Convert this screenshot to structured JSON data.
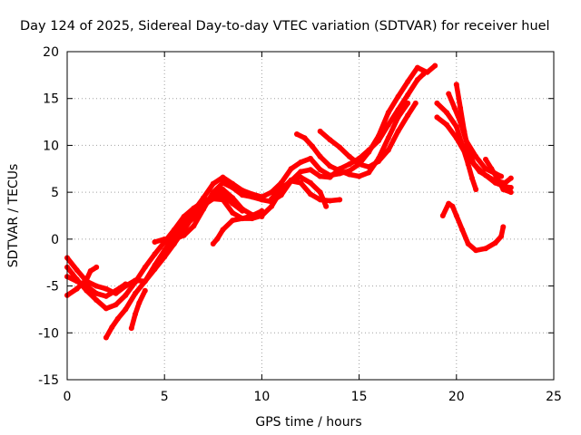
{
  "chart_data": {
    "type": "scatter",
    "title": "Day 124 of 2025, Sidereal Day-to-day VTEC variation (SDTVAR) for receiver huel",
    "xlabel": "GPS time / hours",
    "ylabel": "SDTVAR / TECUs",
    "xlim": [
      0,
      25
    ],
    "ylim": [
      -15,
      20
    ],
    "xticks": [
      0,
      5,
      10,
      15,
      20,
      25
    ],
    "yticks": [
      -15,
      -10,
      -5,
      0,
      5,
      10,
      15,
      20
    ],
    "grid": true,
    "marker_color": "#ff0000",
    "series": [
      {
        "name": "s1",
        "points": [
          [
            0.0,
            -2.0
          ],
          [
            0.5,
            -3.3
          ],
          [
            1.0,
            -4.5
          ],
          [
            1.5,
            -5.0
          ],
          [
            2.0,
            -5.3
          ],
          [
            2.5,
            -5.8
          ],
          [
            3.0,
            -5.0
          ],
          [
            3.5,
            -4.4
          ],
          [
            4.0,
            -4.5
          ],
          [
            4.5,
            -2.8
          ],
          [
            5.0,
            -1.2
          ],
          [
            5.5,
            0.3
          ],
          [
            6.0,
            1.3
          ],
          [
            6.5,
            2.3
          ],
          [
            7.0,
            3.5
          ],
          [
            7.5,
            4.7
          ],
          [
            8.0,
            5.3
          ],
          [
            8.5,
            4.4
          ],
          [
            9.0,
            3.2
          ],
          [
            9.5,
            2.6
          ],
          [
            10.0,
            2.4
          ]
        ]
      },
      {
        "name": "s2",
        "points": [
          [
            0.0,
            -6.0
          ],
          [
            0.5,
            -5.3
          ],
          [
            1.0,
            -4.3
          ],
          [
            1.2,
            -3.4
          ],
          [
            1.5,
            -3.0
          ]
        ]
      },
      {
        "name": "s3",
        "points": [
          [
            0.0,
            -3.0
          ],
          [
            0.5,
            -4.3
          ],
          [
            1.0,
            -5.5
          ],
          [
            1.5,
            -6.5
          ],
          [
            2.0,
            -7.4
          ],
          [
            2.5,
            -7.0
          ],
          [
            3.0,
            -6.0
          ],
          [
            3.5,
            -4.6
          ],
          [
            4.0,
            -3.0
          ],
          [
            4.5,
            -1.6
          ],
          [
            5.0,
            -0.3
          ],
          [
            5.5,
            1.0
          ],
          [
            6.0,
            2.4
          ],
          [
            6.5,
            3.3
          ],
          [
            7.0,
            4.0
          ],
          [
            7.5,
            4.5
          ],
          [
            8.0,
            4.7
          ],
          [
            8.5,
            3.8
          ],
          [
            9.0,
            3.0
          ]
        ]
      },
      {
        "name": "s4",
        "points": [
          [
            0.0,
            -4.0
          ],
          [
            0.5,
            -4.5
          ],
          [
            1.0,
            -5.0
          ],
          [
            1.5,
            -5.8
          ],
          [
            2.0,
            -6.1
          ],
          [
            2.5,
            -5.5
          ],
          [
            3.0,
            -4.8
          ]
        ]
      },
      {
        "name": "s5",
        "points": [
          [
            2.0,
            -10.5
          ],
          [
            2.3,
            -9.4
          ],
          [
            2.6,
            -8.5
          ],
          [
            3.0,
            -7.5
          ],
          [
            3.5,
            -5.8
          ],
          [
            4.0,
            -4.5
          ],
          [
            4.5,
            -3.2
          ],
          [
            5.0,
            -1.9
          ],
          [
            5.5,
            -0.5
          ],
          [
            6.0,
            1.0
          ],
          [
            6.5,
            2.5
          ],
          [
            7.0,
            3.6
          ],
          [
            7.5,
            4.3
          ],
          [
            8.0,
            4.2
          ],
          [
            8.5,
            2.8
          ],
          [
            9.0,
            2.2
          ],
          [
            9.5,
            2.5
          ],
          [
            10.0,
            3.0
          ]
        ]
      },
      {
        "name": "s6",
        "points": [
          [
            3.3,
            -9.5
          ],
          [
            3.5,
            -8.0
          ],
          [
            3.7,
            -6.8
          ],
          [
            4.0,
            -5.5
          ]
        ]
      },
      {
        "name": "s7",
        "points": [
          [
            4.5,
            -0.3
          ],
          [
            5.0,
            0.0
          ],
          [
            5.5,
            0.0
          ],
          [
            6.0,
            0.4
          ],
          [
            6.5,
            1.4
          ],
          [
            7.0,
            3.2
          ],
          [
            7.5,
            5.0
          ],
          [
            8.0,
            6.0
          ],
          [
            8.5,
            5.5
          ],
          [
            9.0,
            4.7
          ],
          [
            9.5,
            4.5
          ],
          [
            10.0,
            4.2
          ],
          [
            10.5,
            4.0
          ],
          [
            11.0,
            4.7
          ],
          [
            11.5,
            6.2
          ],
          [
            12.0,
            7.2
          ],
          [
            12.5,
            7.4
          ],
          [
            13.0,
            6.7
          ],
          [
            13.5,
            6.6
          ],
          [
            14.0,
            7.5
          ],
          [
            14.5,
            8.0
          ],
          [
            15.0,
            8.6
          ],
          [
            15.5,
            9.5
          ],
          [
            16.0,
            10.5
          ],
          [
            16.5,
            12.2
          ],
          [
            17.0,
            13.8
          ],
          [
            17.5,
            15.4
          ],
          [
            18.0,
            17.0
          ],
          [
            18.3,
            17.6
          ]
        ]
      },
      {
        "name": "s8",
        "points": [
          [
            5.0,
            -0.3
          ],
          [
            5.5,
            0.4
          ],
          [
            6.0,
            1.6
          ],
          [
            6.5,
            3.0
          ],
          [
            7.0,
            4.4
          ],
          [
            7.5,
            5.9
          ],
          [
            8.0,
            6.6
          ],
          [
            8.5,
            5.9
          ],
          [
            9.0,
            5.2
          ],
          [
            9.5,
            4.8
          ],
          [
            10.0,
            4.5
          ],
          [
            10.5,
            5.0
          ],
          [
            11.0,
            6.0
          ],
          [
            11.5,
            7.5
          ],
          [
            12.0,
            8.2
          ],
          [
            12.5,
            8.6
          ],
          [
            13.0,
            7.4
          ],
          [
            13.5,
            6.8
          ],
          [
            14.0,
            7.0
          ],
          [
            14.5,
            7.3
          ],
          [
            15.0,
            8.0
          ],
          [
            15.5,
            9.3
          ],
          [
            16.0,
            11.0
          ],
          [
            16.5,
            13.5
          ],
          [
            17.0,
            15.2
          ],
          [
            17.5,
            16.8
          ],
          [
            18.0,
            18.3
          ],
          [
            18.5,
            17.8
          ],
          [
            18.9,
            18.5
          ]
        ]
      },
      {
        "name": "s9",
        "points": [
          [
            7.5,
            -0.5
          ],
          [
            7.7,
            0.0
          ],
          [
            8.0,
            1.0
          ],
          [
            8.5,
            2.0
          ],
          [
            9.0,
            2.2
          ],
          [
            9.5,
            2.2
          ],
          [
            10.0,
            2.5
          ],
          [
            10.5,
            3.5
          ],
          [
            11.0,
            5.2
          ],
          [
            11.5,
            6.3
          ],
          [
            12.0,
            6.6
          ],
          [
            12.5,
            6.0
          ],
          [
            13.0,
            5.0
          ],
          [
            13.3,
            3.5
          ]
        ]
      },
      {
        "name": "s10",
        "points": [
          [
            10.5,
            4.3
          ],
          [
            11.0,
            5.4
          ],
          [
            11.5,
            6.2
          ],
          [
            12.0,
            6.0
          ],
          [
            12.5,
            4.8
          ],
          [
            13.0,
            4.2
          ],
          [
            13.5,
            4.1
          ],
          [
            14.0,
            4.2
          ]
        ]
      },
      {
        "name": "s11",
        "points": [
          [
            11.8,
            11.2
          ],
          [
            12.2,
            10.8
          ],
          [
            12.6,
            9.9
          ],
          [
            13.0,
            8.8
          ],
          [
            13.5,
            7.8
          ],
          [
            14.0,
            7.3
          ],
          [
            14.5,
            6.9
          ],
          [
            15.0,
            6.7
          ],
          [
            15.5,
            7.1
          ],
          [
            16.0,
            8.6
          ],
          [
            16.5,
            10.8
          ],
          [
            17.0,
            13.0
          ],
          [
            17.5,
            14.5
          ]
        ]
      },
      {
        "name": "s12",
        "points": [
          [
            13.0,
            11.5
          ],
          [
            13.5,
            10.6
          ],
          [
            14.0,
            9.8
          ],
          [
            14.5,
            8.8
          ],
          [
            15.0,
            8.0
          ],
          [
            15.5,
            7.7
          ],
          [
            16.0,
            8.3
          ],
          [
            16.5,
            9.5
          ],
          [
            17.0,
            11.5
          ],
          [
            17.5,
            13.2
          ],
          [
            17.9,
            14.5
          ]
        ]
      },
      {
        "name": "s13",
        "points": [
          [
            19.6,
            15.5
          ],
          [
            19.9,
            14.0
          ],
          [
            20.2,
            12.5
          ],
          [
            20.5,
            10.5
          ],
          [
            21.0,
            8.8
          ],
          [
            21.5,
            7.5
          ],
          [
            22.0,
            7.0
          ],
          [
            22.3,
            6.7
          ]
        ]
      },
      {
        "name": "s14",
        "points": [
          [
            19.0,
            14.5
          ],
          [
            19.5,
            13.5
          ],
          [
            20.0,
            12.0
          ],
          [
            20.3,
            10.0
          ],
          [
            20.6,
            8.0
          ],
          [
            20.8,
            6.5
          ],
          [
            21.0,
            5.3
          ]
        ]
      },
      {
        "name": "s15",
        "points": [
          [
            20.0,
            16.5
          ],
          [
            20.2,
            14.0
          ],
          [
            20.4,
            11.5
          ],
          [
            20.6,
            9.5
          ],
          [
            20.9,
            8.0
          ],
          [
            21.2,
            7.2
          ],
          [
            21.6,
            6.7
          ],
          [
            22.0,
            6.2
          ],
          [
            22.5,
            6.0
          ],
          [
            22.8,
            6.5
          ]
        ]
      },
      {
        "name": "s16",
        "points": [
          [
            19.0,
            13.0
          ],
          [
            19.5,
            12.2
          ],
          [
            20.0,
            10.8
          ],
          [
            20.5,
            9.0
          ],
          [
            21.0,
            7.8
          ],
          [
            21.5,
            6.8
          ],
          [
            22.0,
            6.0
          ],
          [
            22.5,
            5.6
          ],
          [
            22.8,
            5.5
          ]
        ]
      },
      {
        "name": "s17",
        "points": [
          [
            21.5,
            8.5
          ],
          [
            21.8,
            7.5
          ],
          [
            22.1,
            6.5
          ],
          [
            22.4,
            5.3
          ],
          [
            22.8,
            5.0
          ]
        ]
      },
      {
        "name": "s18",
        "points": [
          [
            19.3,
            2.5
          ],
          [
            19.6,
            3.8
          ],
          [
            19.8,
            3.5
          ],
          [
            20.0,
            2.5
          ],
          [
            20.3,
            1.0
          ],
          [
            20.6,
            -0.5
          ],
          [
            21.0,
            -1.2
          ],
          [
            21.5,
            -1.0
          ],
          [
            22.0,
            -0.4
          ],
          [
            22.3,
            0.3
          ],
          [
            22.4,
            1.3
          ]
        ]
      }
    ]
  }
}
